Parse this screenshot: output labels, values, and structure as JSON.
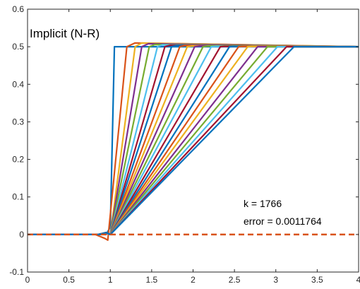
{
  "chart_data": {
    "type": "line",
    "title": "",
    "xlabel": "",
    "ylabel": "",
    "xlim": [
      0,
      4
    ],
    "ylim": [
      -0.1,
      0.6
    ],
    "x_ticks": [
      0,
      0.5,
      1,
      1.5,
      2,
      2.5,
      3,
      3.5,
      4
    ],
    "x_tick_labels": [
      "0",
      "0.5",
      "1",
      "1.5",
      "2",
      "2.5",
      "3",
      "3.5",
      "4"
    ],
    "y_ticks": [
      -0.1,
      0,
      0.1,
      0.2,
      0.3,
      0.4,
      0.5,
      0.6
    ],
    "y_tick_labels": [
      "-0.1",
      "0",
      "0.1",
      "0.2",
      "0.3",
      "0.4",
      "0.5",
      "0.6"
    ],
    "grid": false,
    "series": [
      {
        "color": "#0072BD",
        "style": "solid",
        "x": [
          0,
          0.95,
          1.0,
          1.05,
          4
        ],
        "y": [
          0,
          0,
          0.02,
          0.5,
          0.5
        ]
      },
      {
        "color": "#D95319",
        "style": "solid",
        "x": [
          0,
          0.82,
          0.93,
          0.97,
          1.2,
          1.3,
          4
        ],
        "y": [
          0,
          0,
          -0.01,
          -0.015,
          0.5,
          0.51,
          0.5
        ]
      },
      {
        "color": "#EDB120",
        "style": "solid",
        "x": [
          0,
          0.85,
          0.95,
          1.0,
          1.3,
          1.38,
          4
        ],
        "y": [
          0,
          0,
          0.005,
          0,
          0.5,
          0.51,
          0.5
        ]
      },
      {
        "color": "#7E2F8E",
        "style": "solid",
        "x": [
          0,
          0.85,
          0.95,
          1.0,
          1.38,
          1.46,
          4
        ],
        "y": [
          0,
          0,
          0.005,
          0,
          0.5,
          0.508,
          0.5
        ]
      },
      {
        "color": "#77AC30",
        "style": "solid",
        "x": [
          0,
          0.85,
          0.95,
          1.0,
          1.47,
          1.54,
          4
        ],
        "y": [
          0,
          0,
          0.005,
          0,
          0.5,
          0.506,
          0.5
        ]
      },
      {
        "color": "#4DBEEE",
        "style": "solid",
        "x": [
          0,
          0.85,
          0.95,
          1.0,
          1.57,
          1.63,
          4
        ],
        "y": [
          0,
          0,
          0.005,
          0,
          0.5,
          0.505,
          0.5
        ]
      },
      {
        "color": "#A2142F",
        "style": "solid",
        "x": [
          0,
          0.85,
          0.95,
          1.0,
          1.66,
          1.72,
          4
        ],
        "y": [
          0,
          0,
          0.005,
          0,
          0.5,
          0.504,
          0.5
        ]
      },
      {
        "color": "#0072BD",
        "style": "solid",
        "x": [
          0,
          0.85,
          0.95,
          1.0,
          1.74,
          1.8,
          4
        ],
        "y": [
          0,
          0,
          0.005,
          0,
          0.5,
          0.503,
          0.5
        ]
      },
      {
        "color": "#D95319",
        "style": "solid",
        "x": [
          0,
          0.85,
          0.95,
          1.0,
          1.84,
          1.9,
          4
        ],
        "y": [
          0,
          0,
          0.005,
          0,
          0.5,
          0.503,
          0.5
        ]
      },
      {
        "color": "#EDB120",
        "style": "solid",
        "x": [
          0,
          0.85,
          0.95,
          1.0,
          1.93,
          1.99,
          4
        ],
        "y": [
          0,
          0,
          0.005,
          0,
          0.5,
          0.502,
          0.5
        ]
      },
      {
        "color": "#7E2F8E",
        "style": "solid",
        "x": [
          0,
          0.85,
          0.95,
          1.0,
          2.02,
          2.08,
          4
        ],
        "y": [
          0,
          0,
          0.005,
          0,
          0.5,
          0.502,
          0.5
        ]
      },
      {
        "color": "#77AC30",
        "style": "solid",
        "x": [
          0,
          0.85,
          0.95,
          1.0,
          2.12,
          2.18,
          4
        ],
        "y": [
          0,
          0,
          0.005,
          0,
          0.5,
          0.502,
          0.5
        ]
      },
      {
        "color": "#4DBEEE",
        "style": "solid",
        "x": [
          0,
          0.85,
          0.95,
          1.0,
          2.22,
          2.28,
          4
        ],
        "y": [
          0,
          0,
          0.005,
          0,
          0.5,
          0.501,
          0.5
        ]
      },
      {
        "color": "#A2142F",
        "style": "solid",
        "x": [
          0,
          0.85,
          0.95,
          1.0,
          2.33,
          2.38,
          4
        ],
        "y": [
          0,
          0,
          0.005,
          0,
          0.5,
          0.501,
          0.5
        ]
      },
      {
        "color": "#0072BD",
        "style": "solid",
        "x": [
          0,
          0.85,
          0.95,
          1.0,
          2.44,
          2.49,
          4
        ],
        "y": [
          0,
          0,
          0.005,
          0,
          0.5,
          0.501,
          0.5
        ]
      },
      {
        "color": "#D95319",
        "style": "solid",
        "x": [
          0,
          0.85,
          0.95,
          1.0,
          2.55,
          2.6,
          4
        ],
        "y": [
          0,
          0,
          0.005,
          0,
          0.5,
          0.501,
          0.5
        ]
      },
      {
        "color": "#EDB120",
        "style": "solid",
        "x": [
          0,
          0.85,
          0.95,
          1.0,
          2.66,
          2.71,
          4
        ],
        "y": [
          0,
          0,
          0.005,
          0,
          0.5,
          0.501,
          0.5
        ]
      },
      {
        "color": "#7E2F8E",
        "style": "solid",
        "x": [
          0,
          0.85,
          0.95,
          1.0,
          2.78,
          2.82,
          4
        ],
        "y": [
          0,
          0,
          0.005,
          0,
          0.5,
          0.5,
          0.5
        ]
      },
      {
        "color": "#77AC30",
        "style": "solid",
        "x": [
          0,
          0.85,
          0.95,
          1.0,
          2.9,
          2.94,
          4
        ],
        "y": [
          0,
          0,
          0.005,
          0,
          0.5,
          0.5,
          0.5
        ]
      },
      {
        "color": "#4DBEEE",
        "style": "solid",
        "x": [
          0,
          0.85,
          0.95,
          1.0,
          3.02,
          3.06,
          4
        ],
        "y": [
          0,
          0,
          0.005,
          0,
          0.5,
          0.5,
          0.5
        ]
      },
      {
        "color": "#A2142F",
        "style": "solid",
        "x": [
          0,
          0.85,
          0.95,
          1.0,
          3.13,
          3.17,
          4
        ],
        "y": [
          0,
          0,
          0.005,
          0,
          0.5,
          0.5,
          0.5
        ]
      },
      {
        "color": "#0072BD",
        "style": "solid",
        "x": [
          0,
          0.85,
          0.95,
          1.0,
          3.22,
          4
        ],
        "y": [
          0,
          0,
          0.005,
          0,
          0.5,
          0.5
        ]
      },
      {
        "color": "#D95319",
        "style": "dashed",
        "x": [
          0,
          4
        ],
        "y": [
          0,
          0
        ]
      }
    ],
    "annotations": {
      "method": "Implicit (N-R)",
      "k": "k = 1766",
      "error": "error = 0.0011764"
    }
  }
}
